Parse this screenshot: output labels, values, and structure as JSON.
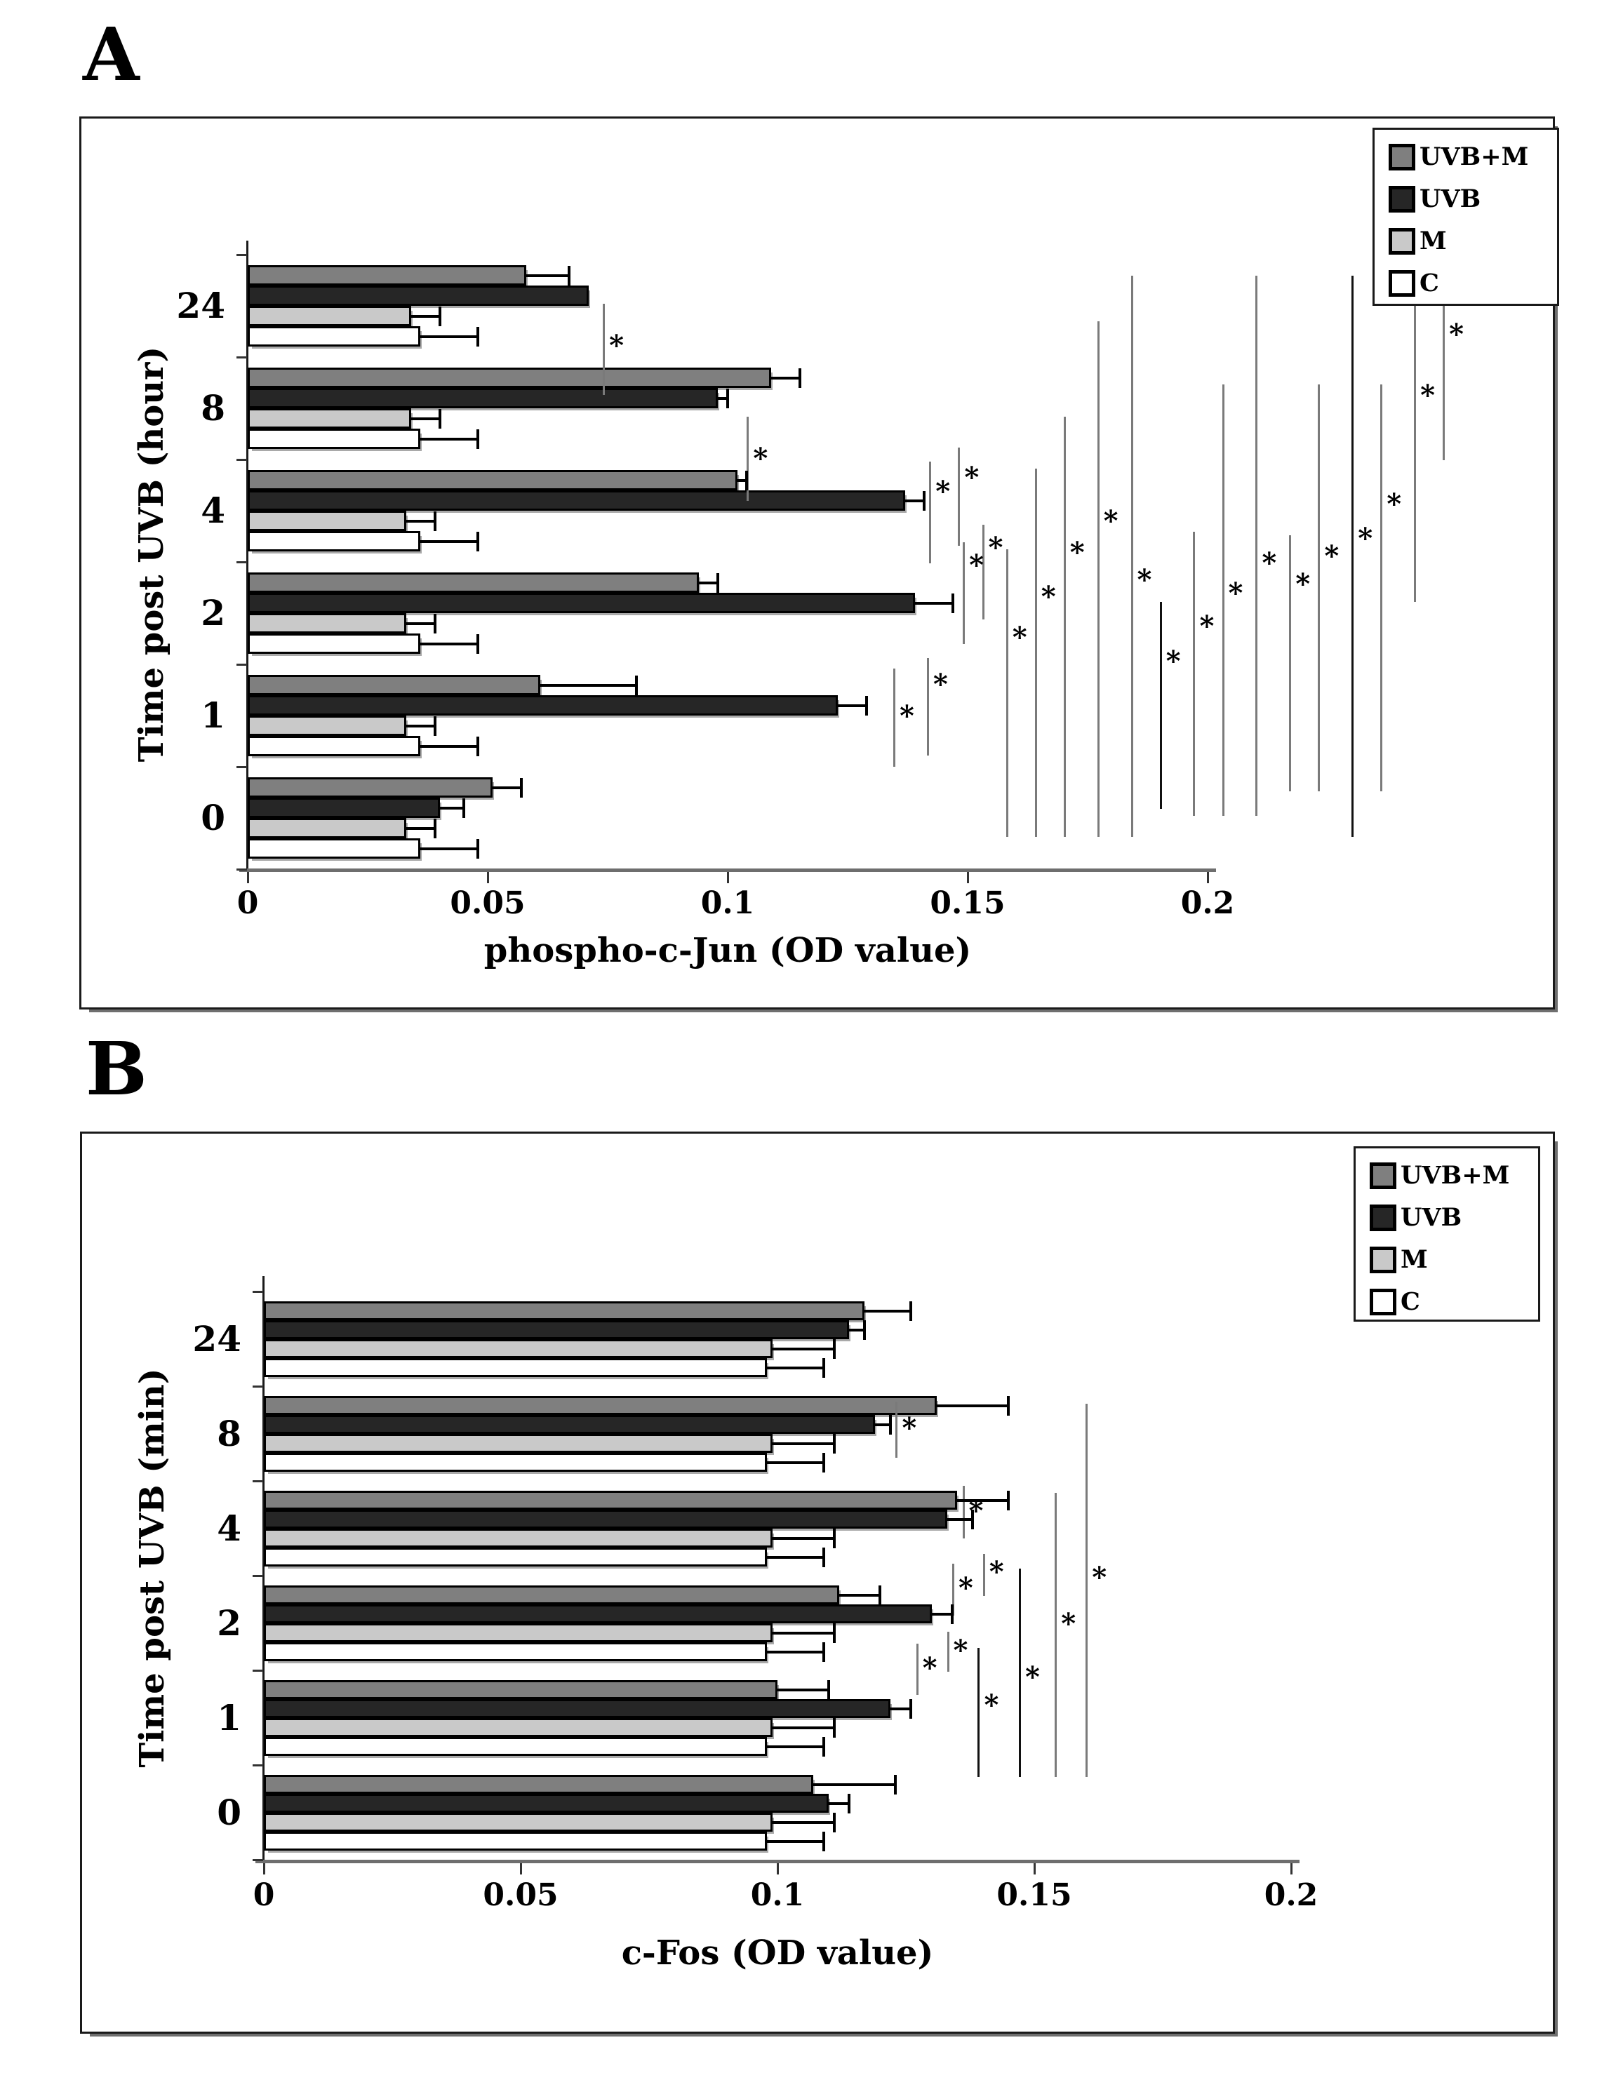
{
  "figure": {
    "panel_a_letter": "A",
    "panel_b_letter": "B",
    "significance_marker": "*"
  },
  "colors": {
    "uvb_plus_m": "#7f7f7f",
    "uvb": "#262626",
    "m": "#c9c9c9",
    "c": "#ffffff",
    "bar_border": "#000000",
    "x_axis": "#6e6e6e",
    "y_axis": "#1a1a1a",
    "sig_line_gray": "#7a7a7a",
    "sig_line_dark": "#111111"
  },
  "legend": {
    "items": [
      {
        "label": "UVB+M",
        "color": "#7f7f7f"
      },
      {
        "label": "UVB",
        "color": "#262626"
      },
      {
        "label": "M",
        "color": "#c9c9c9"
      },
      {
        "label": "C",
        "color": "#ffffff"
      }
    ]
  },
  "chart_data": [
    {
      "panel": "A",
      "type": "bar",
      "orientation": "horizontal",
      "xlabel": "phospho-c-Jun (OD value)",
      "ylabel": "Time post UVB (hour)",
      "categories": [
        "24",
        "8",
        "4",
        "2",
        "1",
        "0"
      ],
      "x_tick_labels": [
        "0",
        "0.05",
        "0.1",
        "0.15",
        "0.2"
      ],
      "x_tick_values": [
        0,
        0.05,
        0.1,
        0.15,
        0.2
      ],
      "xlim": [
        0,
        0.2
      ],
      "legend_position": "top-right",
      "grid": false,
      "series": [
        {
          "name": "UVB+M",
          "values": [
            0.058,
            0.109,
            0.102,
            0.094,
            0.061,
            0.051
          ],
          "errors": [
            0.009,
            0.006,
            0.002,
            0.004,
            0.02,
            0.006
          ]
        },
        {
          "name": "UVB",
          "values": [
            0.071,
            0.098,
            0.137,
            0.139,
            0.123,
            0.04
          ],
          "errors": [
            0,
            0.002,
            0.004,
            0.008,
            0.006,
            0.005
          ]
        },
        {
          "name": "M",
          "values": [
            0.034,
            0.034,
            0.033,
            0.033,
            0.033,
            0.033
          ],
          "errors": [
            0.006,
            0.006,
            0.006,
            0.006,
            0.006,
            0.006
          ]
        },
        {
          "name": "C",
          "values": [
            0.036,
            0.036,
            0.036,
            0.036,
            0.036,
            0.036
          ],
          "errors": [
            0.012,
            0.012,
            0.012,
            0.012,
            0.012,
            0.012
          ]
        }
      ],
      "sig_lines": [
        {
          "x": 0.074,
          "y1": 0.1,
          "y2": 0.246,
          "star": 0.165
        },
        {
          "x": 0.104,
          "y1": 0.28,
          "y2": 0.414,
          "star": 0.345
        },
        {
          "x": 0.1345,
          "y1": 0.682,
          "y2": 0.838,
          "star": 0.755
        },
        {
          "x": 0.1415,
          "y1": 0.665,
          "y2": 0.82,
          "star": 0.705
        },
        {
          "x": 0.142,
          "y1": 0.352,
          "y2": 0.514,
          "star": 0.398
        },
        {
          "x": 0.148,
          "y1": 0.33,
          "y2": 0.486,
          "star": 0.375
        },
        {
          "x": 0.149,
          "y1": 0.48,
          "y2": 0.642,
          "star": 0.515
        },
        {
          "x": 0.153,
          "y1": 0.452,
          "y2": 0.603,
          "star": 0.487
        },
        {
          "x": 0.158,
          "y1": 0.492,
          "y2": 0.95,
          "star": 0.63
        },
        {
          "x": 0.164,
          "y1": 0.363,
          "y2": 0.95,
          "star": 0.565
        },
        {
          "x": 0.17,
          "y1": 0.28,
          "y2": 0.95,
          "star": 0.495
        },
        {
          "x": 0.177,
          "y1": 0.128,
          "y2": 0.95,
          "star": 0.445
        },
        {
          "x": 0.184,
          "y1": 0.056,
          "y2": 0.95,
          "star": 0.538
        },
        {
          "x": 0.19,
          "y1": 0.575,
          "y2": 0.905,
          "star": 0.668,
          "dark": true
        },
        {
          "x": 0.197,
          "y1": 0.464,
          "y2": 0.916,
          "star": 0.612
        },
        {
          "x": 0.203,
          "y1": 0.229,
          "y2": 0.916,
          "star": 0.56
        },
        {
          "x": 0.21,
          "y1": 0.056,
          "y2": 0.916,
          "star": 0.512
        },
        {
          "x": 0.217,
          "y1": 0.469,
          "y2": 0.877,
          "star": 0.545
        },
        {
          "x": 0.223,
          "y1": 0.229,
          "y2": 0.877,
          "star": 0.5
        },
        {
          "x": 0.23,
          "y1": 0.056,
          "y2": 0.95,
          "star": 0.473,
          "dark": true
        },
        {
          "x": 0.236,
          "y1": 0.229,
          "y2": 0.877,
          "star": 0.418
        },
        {
          "x": 0.243,
          "y1": 0.056,
          "y2": 0.575,
          "star": 0.245
        },
        {
          "x": 0.249,
          "y1": 0.05,
          "y2": 0.35,
          "star": 0.148
        }
      ]
    },
    {
      "panel": "B",
      "type": "bar",
      "orientation": "horizontal",
      "xlabel": "c-Fos (OD value)",
      "ylabel": "Time post UVB (min)",
      "categories": [
        "24",
        "8",
        "4",
        "2",
        "1",
        "0"
      ],
      "x_tick_labels": [
        "0",
        "0.05",
        "0.1",
        "0.15",
        "0.2"
      ],
      "x_tick_values": [
        0,
        0.05,
        0.1,
        0.15,
        0.2
      ],
      "xlim": [
        0,
        0.2
      ],
      "legend_position": "top-right",
      "grid": false,
      "series": [
        {
          "name": "UVB+M",
          "values": [
            0.117,
            0.131,
            0.135,
            0.112,
            0.1,
            0.107
          ],
          "errors": [
            0.009,
            0.014,
            0.01,
            0.008,
            0.01,
            0.016
          ]
        },
        {
          "name": "UVB",
          "values": [
            0.114,
            0.119,
            0.133,
            0.13,
            0.122,
            0.11
          ],
          "errors": [
            0.003,
            0.003,
            0.005,
            0.004,
            0.004,
            0.004
          ]
        },
        {
          "name": "M",
          "values": [
            0.099,
            0.099,
            0.099,
            0.099,
            0.099,
            0.099
          ],
          "errors": [
            0.012,
            0.012,
            0.012,
            0.012,
            0.012,
            0.012
          ]
        },
        {
          "name": "C",
          "values": [
            0.098,
            0.098,
            0.098,
            0.098,
            0.098,
            0.098
          ],
          "errors": [
            0.011,
            0.011,
            0.011,
            0.011,
            0.011,
            0.011
          ]
        }
      ],
      "sig_lines": [
        {
          "x": 0.123,
          "y1": 0.215,
          "y2": 0.311,
          "star": 0.258
        },
        {
          "x": 0.136,
          "y1": 0.359,
          "y2": 0.45,
          "star": 0.4
        },
        {
          "x": 0.14,
          "y1": 0.476,
          "y2": 0.548,
          "star": 0.505
        },
        {
          "x": 0.134,
          "y1": 0.493,
          "y2": 0.582,
          "star": 0.533
        },
        {
          "x": 0.133,
          "y1": 0.609,
          "y2": 0.678,
          "star": 0.64
        },
        {
          "x": 0.127,
          "y1": 0.63,
          "y2": 0.718,
          "star": 0.67
        },
        {
          "x": 0.139,
          "y1": 0.637,
          "y2": 0.858,
          "star": 0.733,
          "dark": true
        },
        {
          "x": 0.147,
          "y1": 0.501,
          "y2": 0.858,
          "star": 0.685,
          "dark": true
        },
        {
          "x": 0.154,
          "y1": 0.371,
          "y2": 0.858,
          "star": 0.594
        },
        {
          "x": 0.16,
          "y1": 0.219,
          "y2": 0.858,
          "star": 0.515
        }
      ]
    }
  ]
}
